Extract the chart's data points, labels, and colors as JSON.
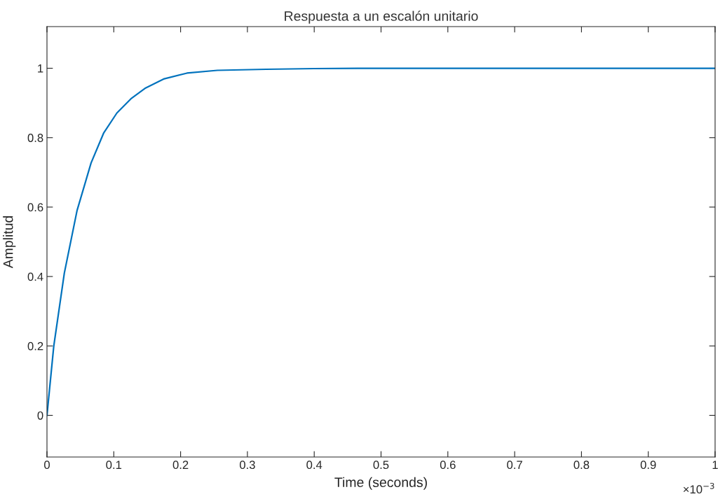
{
  "chart_data": {
    "type": "line",
    "title": "Respuesta a un escalón unitario",
    "xlabel": "Time (seconds)",
    "ylabel": "Amplitud",
    "annotations": [
      "×10$^{−3}$"
    ],
    "x": [
      0,
      0.0102,
      0.026,
      0.045,
      0.066,
      0.085,
      0.1046,
      0.1256,
      0.1466,
      0.1745,
      0.2095,
      0.255,
      0.328,
      0.4,
      0.5,
      0.6,
      0.7,
      0.8,
      0.9,
      1.0
    ],
    "series": [
      {
        "color": "#0072bd",
        "values": [
          0,
          0.2,
          0.41,
          0.59,
          0.727,
          0.814,
          0.871,
          0.912,
          0.942,
          0.969,
          0.986,
          0.994,
          0.997,
          0.999,
          1.0,
          1.0,
          1.0,
          1.0,
          1.0,
          1.0
        ]
      }
    ],
    "xlim": [
      0,
      1
    ],
    "ylim": [
      -0.12,
      1.12
    ],
    "xticks": [
      0,
      0.1,
      0.2,
      0.3,
      0.4,
      0.5,
      0.6,
      0.7,
      0.8,
      0.9,
      1
    ],
    "yticks": [
      0,
      0.2,
      0.4,
      0.6,
      0.8,
      1
    ],
    "grid": false,
    "marker": "none",
    "line_style": "solid"
  }
}
